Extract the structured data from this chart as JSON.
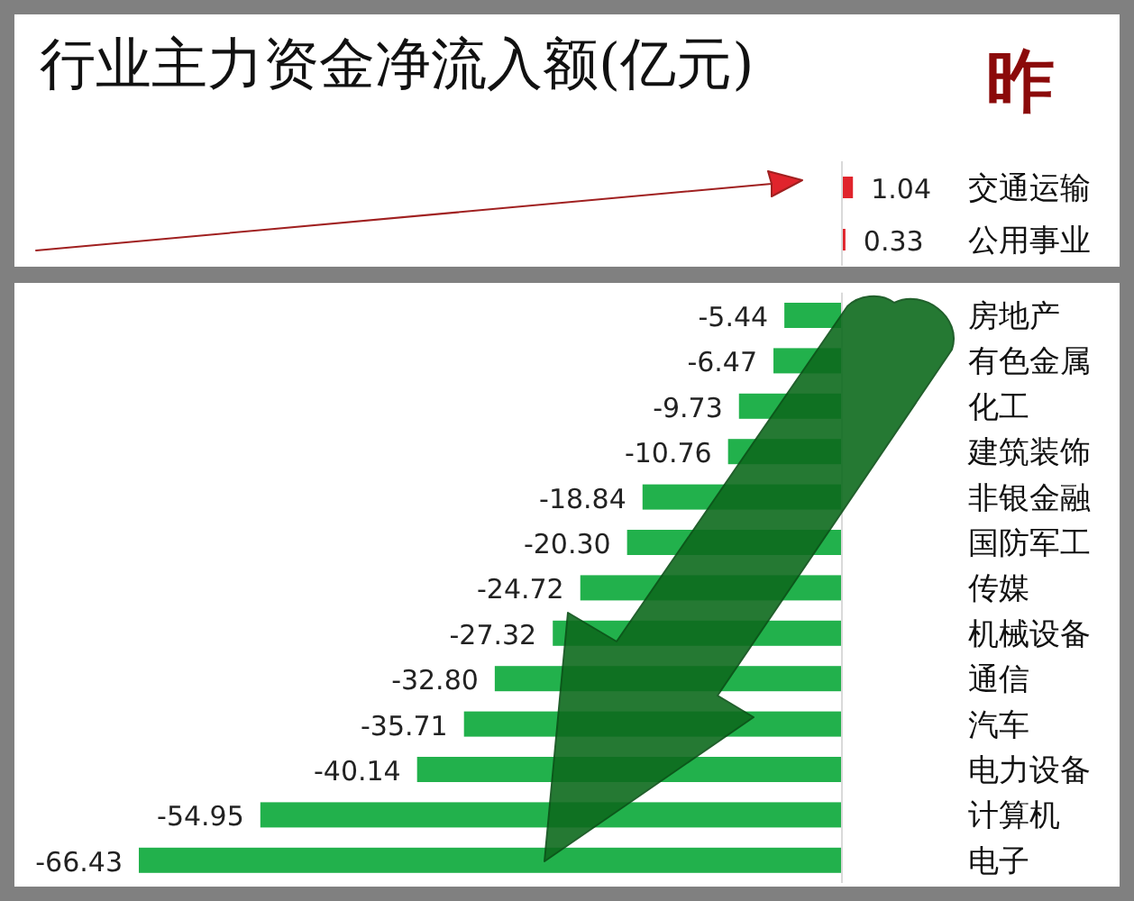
{
  "chart_data": [
    {
      "type": "bar",
      "orientation": "horizontal",
      "title": "行业主力资金净流入额(亿元)",
      "annotations": [
        "昨"
      ],
      "value_labels": [
        "1.04",
        "0.33"
      ],
      "categories": [
        "交通运输",
        "公用事业"
      ],
      "values": [
        1.04,
        0.33
      ],
      "colors": [
        "#e0242c",
        "#e0242c"
      ]
    },
    {
      "type": "bar",
      "orientation": "horizontal",
      "value_labels": [
        "-5.44",
        "-6.47",
        "-9.73",
        "-10.76",
        "-18.84",
        "-20.30",
        "-24.72",
        "-27.32",
        "-32.80",
        "-35.71",
        "-40.14",
        "-54.95",
        "-66.43"
      ],
      "categories": [
        "房地产",
        "有色金属",
        "化工",
        "建筑装饰",
        "非银金融",
        "国防军工",
        "传媒",
        "机械设备",
        "通信",
        "汽车",
        "电力设备",
        "计算机",
        "电子"
      ],
      "values": [
        -5.44,
        -6.47,
        -9.73,
        -10.76,
        -18.84,
        -20.3,
        -24.72,
        -27.32,
        -32.8,
        -35.71,
        -40.14,
        -54.95,
        -66.43
      ],
      "colors": [
        "#22b14c",
        "#22b14c",
        "#22b14c",
        "#22b14c",
        "#22b14c",
        "#22b14c",
        "#22b14c",
        "#22b14c",
        "#22b14c",
        "#22b14c",
        "#22b14c",
        "#22b14c",
        "#22b14c"
      ]
    }
  ]
}
